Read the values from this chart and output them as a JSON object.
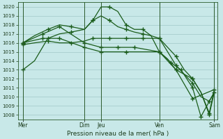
{
  "background_color": "#c8e8e8",
  "grid_color": "#a0c8c8",
  "line_color": "#1a5c1a",
  "marker_color": "#1a5c1a",
  "xlabel": "Pression niveau de la mer( hPa )",
  "ylim": [
    1007.5,
    1020.5
  ],
  "yticks": [
    1008,
    1009,
    1010,
    1011,
    1012,
    1013,
    1014,
    1015,
    1016,
    1017,
    1018,
    1019,
    1020
  ],
  "xlim": [
    0,
    12
  ],
  "xtick_labels": [
    "Mer",
    "Dim",
    "Jeu",
    "Ven",
    "Sam"
  ],
  "xtick_positions": [
    0.3,
    4.0,
    5.0,
    8.5,
    11.8
  ],
  "vline_positions": [
    0.3,
    4.0,
    5.0,
    8.5,
    11.8
  ],
  "series": [
    {
      "x": [
        0.3,
        1.0,
        1.8,
        2.5,
        3.2,
        4.0,
        4.5,
        5.0,
        5.5,
        6.0,
        6.5,
        7.0,
        7.5,
        8.0,
        8.5,
        9.0,
        9.5,
        10.0,
        10.5,
        11.0,
        11.5,
        11.8
      ],
      "y": [
        1013.0,
        1014.0,
        1016.5,
        1017.0,
        1017.2,
        1017.5,
        1018.5,
        1020.0,
        1020.0,
        1019.5,
        1018.0,
        1017.5,
        1017.5,
        1016.8,
        1016.5,
        1015.0,
        1013.5,
        1012.5,
        1011.5,
        1010.0,
        1009.5,
        1010.5
      ],
      "markevery": 2
    },
    {
      "x": [
        0.3,
        1.0,
        1.8,
        2.5,
        3.2,
        4.0,
        4.5,
        5.0,
        5.5,
        6.0,
        6.5,
        7.0,
        7.5,
        8.0,
        8.5,
        9.0,
        9.5,
        10.0,
        10.5,
        11.0,
        11.5,
        11.8
      ],
      "y": [
        1015.8,
        1016.0,
        1016.2,
        1016.0,
        1016.0,
        1016.2,
        1016.5,
        1016.5,
        1016.5,
        1016.5,
        1016.5,
        1016.5,
        1016.5,
        1016.5,
        1016.5,
        1015.5,
        1014.5,
        1013.0,
        1012.0,
        1010.5,
        1008.0,
        1010.5
      ],
      "markevery": 2
    },
    {
      "x": [
        0.3,
        1.0,
        1.8,
        2.5,
        3.2,
        4.0,
        4.5,
        5.0,
        5.5,
        6.0,
        6.5,
        7.0,
        7.5,
        8.0,
        8.5,
        9.0,
        9.5,
        10.0,
        10.5,
        11.0,
        11.5,
        11.8
      ],
      "y": [
        1016.0,
        1016.8,
        1017.5,
        1018.0,
        1017.8,
        1017.5,
        1018.5,
        1019.0,
        1018.5,
        1017.8,
        1017.5,
        1017.2,
        1017.0,
        1016.8,
        1015.0,
        1014.2,
        1013.0,
        1012.5,
        1012.0,
        1010.5,
        1008.2,
        1010.8
      ],
      "markevery": 2
    },
    {
      "x": [
        0.3,
        1.5,
        2.5,
        4.0,
        5.0,
        6.0,
        7.0,
        8.5,
        9.5,
        10.5,
        11.8
      ],
      "y": [
        1016.0,
        1017.0,
        1017.8,
        1016.0,
        1015.5,
        1015.5,
        1015.5,
        1015.0,
        1013.0,
        1009.8,
        1010.8
      ],
      "markevery": 1
    },
    {
      "x": [
        0.3,
        1.5,
        2.5,
        4.0,
        5.0,
        6.5,
        8.5,
        9.2,
        9.8,
        10.5,
        11.0,
        11.8
      ],
      "y": [
        1016.0,
        1016.5,
        1016.5,
        1015.5,
        1015.0,
        1015.0,
        1015.0,
        1013.8,
        1013.0,
        1011.0,
        1007.8,
        1010.5
      ],
      "markevery": 1
    }
  ],
  "figsize": [
    3.2,
    2.0
  ],
  "dpi": 100
}
